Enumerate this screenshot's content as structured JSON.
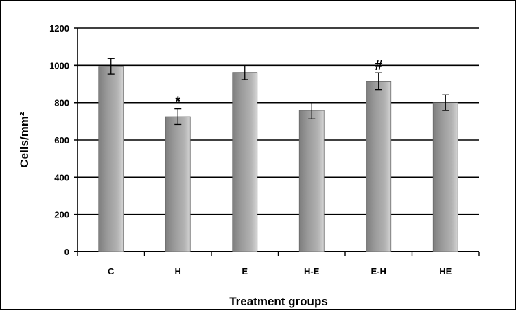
{
  "chart_data": {
    "type": "bar",
    "categories": [
      "C",
      "H",
      "E",
      "H-E",
      "E-H",
      "HE"
    ],
    "values": [
      995,
      725,
      962,
      758,
      915,
      800
    ],
    "errors": [
      42,
      42,
      38,
      45,
      45,
      42
    ],
    "annotations": [
      "",
      "*",
      "",
      "",
      "#",
      ""
    ],
    "xlabel": "Treatment groups",
    "ylabel": "Cells/mm²",
    "ylim": [
      0,
      1200
    ],
    "yticks": [
      0,
      200,
      400,
      600,
      800,
      1000,
      1200
    ],
    "grid": true,
    "legend": "none",
    "bar_color": "#9a9a9a"
  }
}
